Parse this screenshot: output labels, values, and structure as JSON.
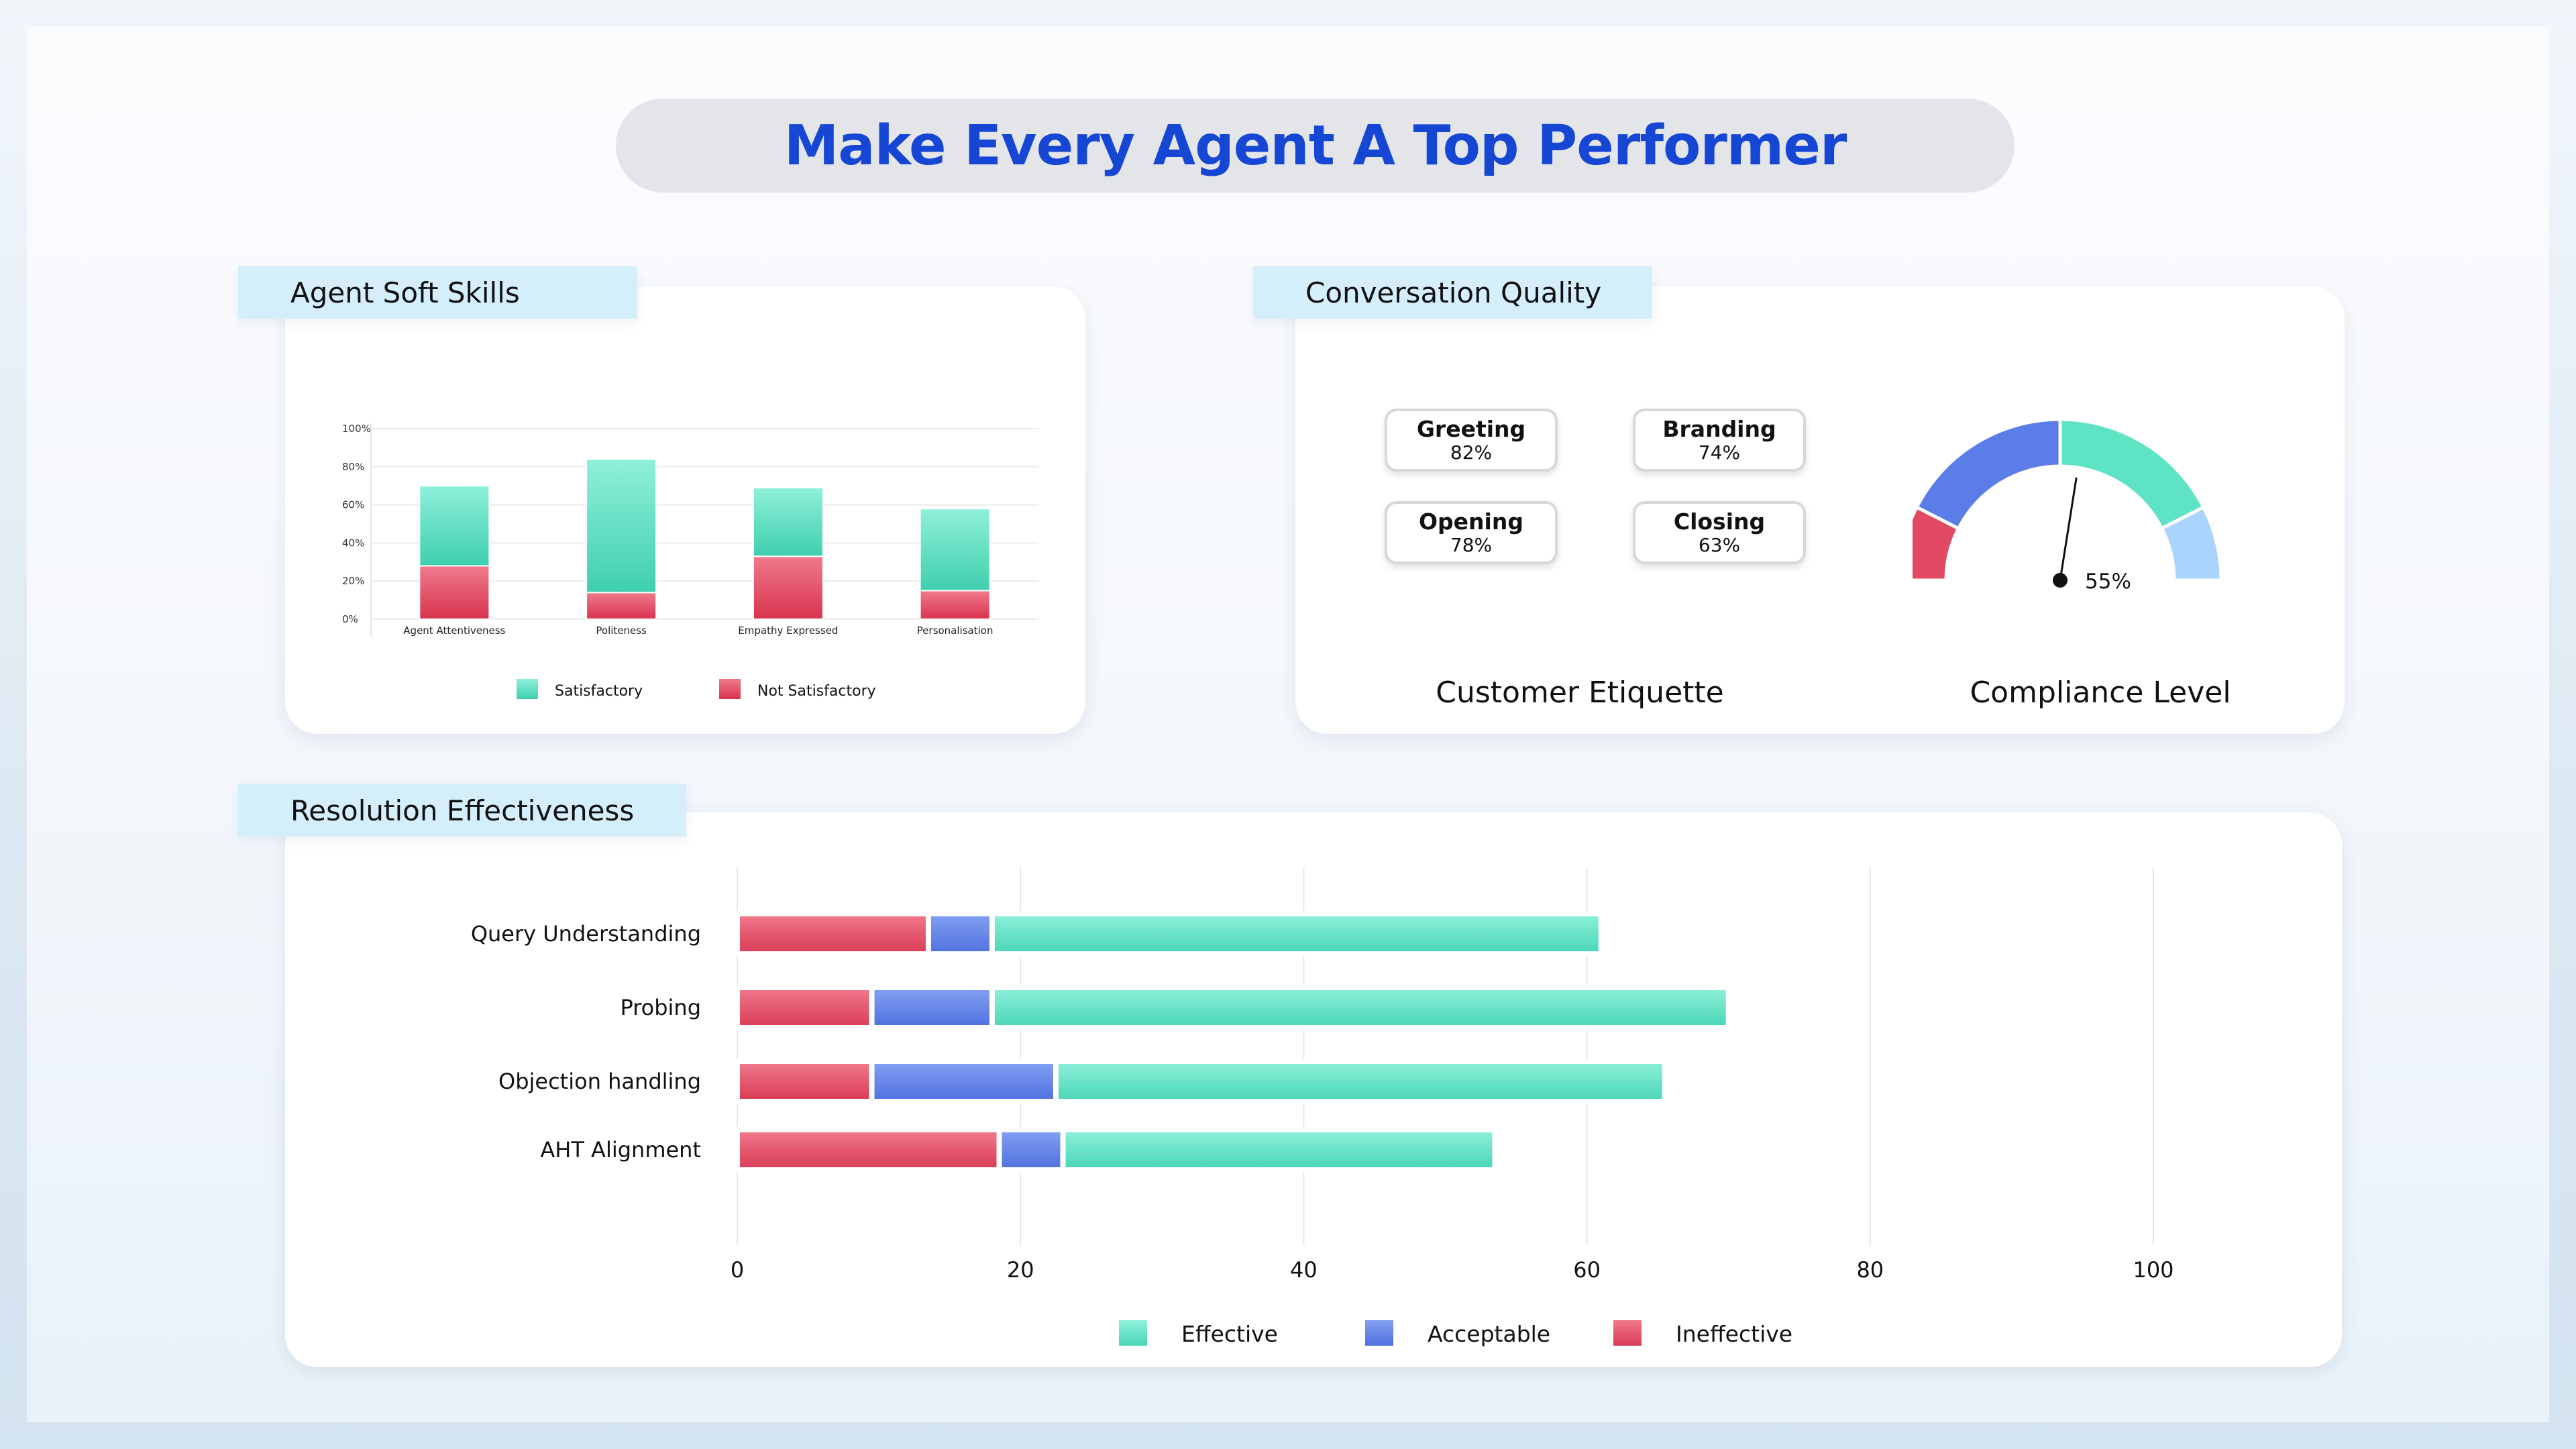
{
  "page_title": "Make Every Agent A Top Performer",
  "colors": {
    "satisfactory": "#5fe3c5",
    "not_satisfactory": "#e24a63",
    "effective": "#5fe3c5",
    "acceptable": "#5b7de8",
    "ineffective": "#e24a63",
    "title": "#1546d4"
  },
  "soft_skills": {
    "heading": "Agent Soft Skills"
  },
  "conversation_quality": {
    "heading": "Conversation Quality",
    "etiquette_caption": "Customer Etiquette",
    "compliance_caption": "Compliance Level",
    "metrics": [
      {
        "name": "Greeting",
        "value": "82%"
      },
      {
        "name": "Branding",
        "value": "74%"
      },
      {
        "name": "Opening",
        "value": "78%"
      },
      {
        "name": "Closing",
        "value": "63%"
      }
    ]
  },
  "resolution": {
    "heading": "Resolution Effectiveness"
  },
  "chart_data": [
    {
      "id": "soft_skills",
      "type": "bar",
      "stacked": true,
      "categories": [
        "Agent Attentiveness",
        "Politeness",
        "Empathy Expressed",
        "Personalisation"
      ],
      "series": [
        {
          "name": "Not Satisfactory",
          "values": [
            28,
            14,
            33,
            15
          ]
        },
        {
          "name": "Satisfactory",
          "values": [
            42,
            70,
            36,
            43
          ]
        }
      ],
      "yticks": [
        "0%",
        "20%",
        "40%",
        "60%",
        "80%",
        "100%"
      ],
      "ylim": [
        0,
        100
      ],
      "legend": [
        "Satisfactory",
        "Not Satisfactory"
      ]
    },
    {
      "id": "compliance",
      "type": "gauge",
      "value": 55,
      "label": "55%",
      "range": [
        0,
        100
      ],
      "bands": [
        {
          "from": 0,
          "to": 15,
          "color": "#e24a63"
        },
        {
          "from": 15,
          "to": 50,
          "color": "#5b7de8"
        },
        {
          "from": 50,
          "to": 85,
          "color": "#5fe3c5"
        },
        {
          "from": 85,
          "to": 100,
          "color": "#a9d4fb"
        }
      ]
    },
    {
      "id": "resolution",
      "type": "bar",
      "orientation": "horizontal",
      "stacked": true,
      "categories": [
        "Query Understanding",
        "Probing",
        "Objection handling",
        "AHT Alignment"
      ],
      "series": [
        {
          "name": "Ineffective",
          "values": [
            13.5,
            9.5,
            9.5,
            18.5
          ]
        },
        {
          "name": "Acceptable",
          "values": [
            4.5,
            8.5,
            13,
            4.5
          ]
        },
        {
          "name": "Effective",
          "values": [
            43,
            52,
            43,
            30.5
          ]
        }
      ],
      "xticks": [
        "0",
        "20",
        "40",
        "60",
        "80",
        "100"
      ],
      "xlim": [
        0,
        100
      ],
      "legend": [
        "Effective",
        "Acceptable",
        "Ineffective"
      ]
    }
  ]
}
